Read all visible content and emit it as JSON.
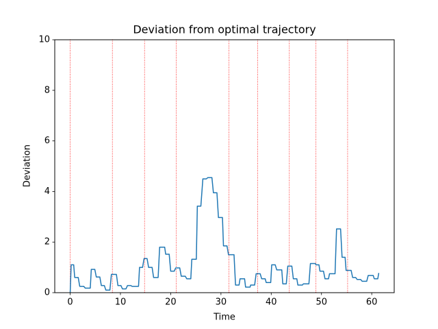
{
  "chart_data": {
    "type": "line",
    "title": "Deviation from optimal trajectory",
    "x_label": "Time",
    "y_label": "Deviation",
    "x": [
      0,
      0.2,
      0.7,
      0.9,
      1.6,
      1.9,
      2.7,
      3.0,
      4.0,
      4.2,
      4.9,
      5.2,
      5.9,
      6.2,
      6.8,
      7.1,
      7.9,
      8.2,
      9.2,
      9.5,
      10.1,
      10.4,
      11.1,
      11.4,
      12.1,
      12.3,
      13.6,
      13.8,
      14.4,
      14.7,
      15.3,
      15.6,
      16.3,
      16.6,
      17.5,
      17.8,
      18.8,
      19.0,
      19.7,
      20.0,
      20.7,
      21.0,
      21.8,
      22.1,
      22.9,
      23.2,
      24.0,
      24.2,
      25.1,
      25.3,
      26.0,
      26.4,
      27.1,
      27.4,
      28.2,
      28.5,
      29.2,
      29.5,
      30.3,
      30.5,
      31.2,
      31.5,
      32.6,
      32.9,
      33.6,
      33.8,
      34.7,
      34.9,
      35.8,
      35.9,
      36.7,
      37.0,
      37.8,
      38.1,
      38.8,
      39.0,
      39.9,
      40.1,
      40.8,
      41.1,
      42.1,
      42.3,
      43.0,
      43.3,
      44.1,
      44.4,
      45.1,
      45.3,
      46.2,
      46.4,
      47.5,
      47.8,
      48.8,
      48.9,
      49.5,
      49.7,
      50.4,
      50.7,
      51.4,
      51.6,
      52.7,
      53.0,
      53.8,
      54.1,
      54.7,
      54.9,
      55.9,
      56.2,
      56.8,
      57.1,
      57.8,
      58.1,
      59.0,
      59.3,
      60.3,
      60.5,
      61.2,
      61.4
    ],
    "series": [
      {
        "color": "#1f77b4",
        "values": [
          0,
          1.1,
          1.1,
          0.6,
          0.6,
          0.25,
          0.25,
          0.18,
          0.18,
          0.92,
          0.92,
          0.62,
          0.62,
          0.28,
          0.28,
          0.1,
          0.1,
          0.72,
          0.72,
          0.28,
          0.28,
          0.15,
          0.15,
          0.28,
          0.28,
          0.25,
          0.25,
          1.0,
          1.0,
          1.35,
          1.35,
          1.0,
          1.0,
          0.6,
          0.6,
          1.8,
          1.8,
          1.52,
          1.52,
          0.85,
          0.85,
          0.98,
          0.98,
          0.65,
          0.65,
          0.55,
          0.55,
          1.32,
          1.32,
          3.42,
          3.42,
          4.5,
          4.5,
          4.55,
          4.55,
          3.95,
          3.95,
          2.97,
          2.97,
          1.85,
          1.85,
          1.5,
          1.5,
          0.3,
          0.3,
          0.55,
          0.55,
          0.22,
          0.22,
          0.3,
          0.3,
          0.75,
          0.75,
          0.55,
          0.55,
          0.4,
          0.4,
          1.1,
          1.1,
          0.9,
          0.9,
          0.35,
          0.35,
          1.05,
          1.05,
          0.55,
          0.55,
          0.3,
          0.3,
          0.35,
          0.35,
          1.15,
          1.15,
          1.1,
          1.1,
          0.85,
          0.85,
          0.55,
          0.55,
          0.75,
          0.75,
          2.52,
          2.52,
          1.4,
          1.4,
          0.88,
          0.88,
          0.6,
          0.6,
          0.52,
          0.52,
          0.45,
          0.45,
          0.68,
          0.68,
          0.55,
          0.55,
          0.78
        ]
      }
    ],
    "vlines": {
      "color": "red",
      "values": [
        0,
        8.4,
        14.8,
        21.1,
        31.6,
        37.3,
        43.6,
        48.9,
        55.2
      ]
    },
    "xlim": [
      -3.07,
      64.47
    ],
    "ylim": [
      0,
      10
    ],
    "xticks": [
      0,
      10,
      20,
      30,
      40,
      50,
      60
    ],
    "yticks": [
      0,
      2,
      4,
      6,
      8,
      10
    ]
  }
}
